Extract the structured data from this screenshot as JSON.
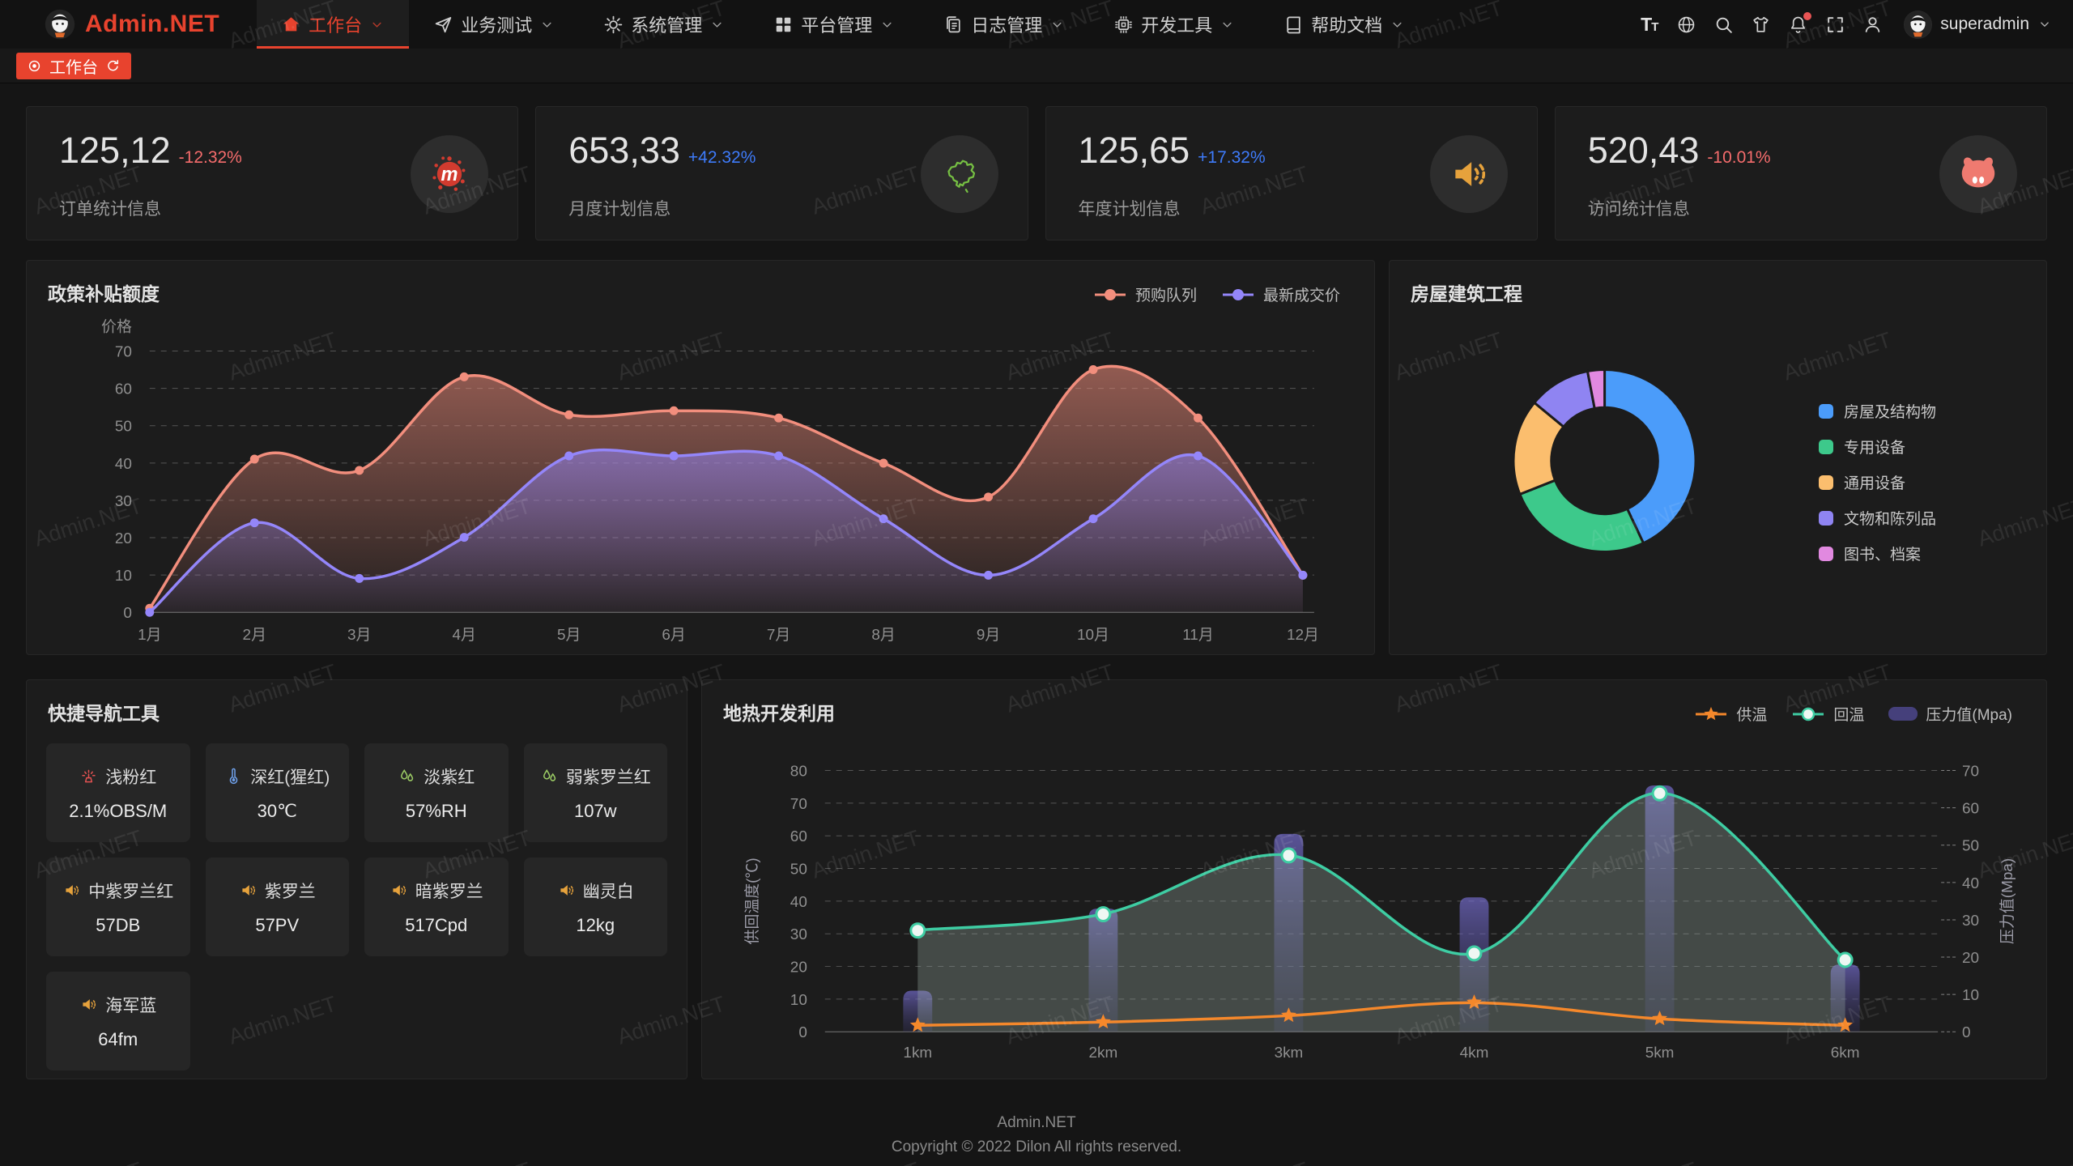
{
  "navbar": {
    "logo_text": "Admin.NET",
    "menus": [
      {
        "label": "工作台",
        "icon": "home-icon",
        "active": true
      },
      {
        "label": "业务测试",
        "icon": "send-icon",
        "active": false
      },
      {
        "label": "系统管理",
        "icon": "gear-icon",
        "active": false
      },
      {
        "label": "平台管理",
        "icon": "grid-icon",
        "active": false
      },
      {
        "label": "日志管理",
        "icon": "log-icon",
        "active": false
      },
      {
        "label": "开发工具",
        "icon": "chip-icon",
        "active": false
      },
      {
        "label": "帮助文档",
        "icon": "book-icon",
        "active": false
      }
    ],
    "right_icons": [
      "font-size-icon",
      "language-icon",
      "search-icon",
      "theme-icon",
      "bell-icon",
      "fullscreen-icon",
      "user-icon"
    ],
    "bell_has_badge": true,
    "user": "superadmin"
  },
  "tabbar": {
    "active_tab": "工作台"
  },
  "stat_cards": [
    {
      "value": "125,12",
      "delta": "-12.32%",
      "trend": "down",
      "label": "订单统计信息",
      "icon": "splat-icon"
    },
    {
      "value": "653,33",
      "delta": "+42.32%",
      "trend": "up",
      "label": "月度计划信息",
      "icon": "china-map-icon"
    },
    {
      "value": "125,65",
      "delta": "+17.32%",
      "trend": "up",
      "label": "年度计划信息",
      "icon": "speaker-icon"
    },
    {
      "value": "520,43",
      "delta": "-10.01%",
      "trend": "down",
      "label": "访问统计信息",
      "icon": "pig-icon"
    }
  ],
  "chart_data": [
    {
      "type": "area",
      "title": "政策补贴额度",
      "ylabel": "价格",
      "ylim": [
        0,
        70
      ],
      "grid": "dashed",
      "legend_position": "top-right",
      "categories": [
        "1月",
        "2月",
        "3月",
        "4月",
        "5月",
        "6月",
        "7月",
        "8月",
        "9月",
        "10月",
        "11月",
        "12月"
      ],
      "series": [
        {
          "name": "预购队列",
          "color": "#F28E7D",
          "values": [
            1,
            41,
            38,
            63,
            53,
            54,
            52,
            40,
            31,
            65,
            52,
            10
          ]
        },
        {
          "name": "最新成交价",
          "color": "#9486FA",
          "values": [
            0,
            24,
            9,
            20,
            42,
            42,
            42,
            25,
            10,
            25,
            42,
            10
          ]
        }
      ]
    },
    {
      "type": "pie",
      "title": "房屋建筑工程",
      "legend_position": "right",
      "slices": [
        {
          "label": "房屋及结构物",
          "value": 43,
          "color": "#4B9CFA"
        },
        {
          "label": "专用设备",
          "value": 26,
          "color": "#3DC98B"
        },
        {
          "label": "通用设备",
          "value": 17,
          "color": "#FBBE6E"
        },
        {
          "label": "文物和陈列品",
          "value": 11,
          "color": "#8F84F2"
        },
        {
          "label": "图书、档案",
          "value": 3,
          "color": "#E189E0"
        }
      ]
    },
    {
      "type": "line-bar",
      "title": "地热开发利用",
      "legend_position": "top-right",
      "categories": [
        "1km",
        "2km",
        "3km",
        "4km",
        "5km",
        "6km"
      ],
      "left_axis": {
        "label": "供回温度(℃)",
        "lim": [
          0,
          80
        ]
      },
      "right_axis": {
        "label": "压力值(Mpa)",
        "lim": [
          0,
          70
        ]
      },
      "series": [
        {
          "name": "供温",
          "kind": "line",
          "marker": "star",
          "axis": "left",
          "color": "#F5882B",
          "values": [
            2,
            3,
            5,
            9,
            4,
            2
          ]
        },
        {
          "name": "回温",
          "kind": "line",
          "marker": "circle",
          "axis": "left",
          "color": "#3ECDA3",
          "area": true,
          "values": [
            31,
            36,
            54,
            24,
            73,
            22
          ]
        },
        {
          "name": "压力值(Mpa)",
          "kind": "bar",
          "axis": "right",
          "color": "#45407B",
          "values": [
            11,
            33,
            53,
            36,
            66,
            18
          ]
        }
      ]
    }
  ],
  "quicknav": {
    "title": "快捷导航工具",
    "items": [
      {
        "title": "浅粉红",
        "value": "2.1%OBS/M",
        "icon": "fountain-icon",
        "color": "#e05151"
      },
      {
        "title": "深红(猩红)",
        "value": "30℃",
        "icon": "thermometer-icon",
        "color": "#6e9fe8"
      },
      {
        "title": "淡紫红",
        "value": "57%RH",
        "icon": "drops-icon",
        "color": "#9ccc65"
      },
      {
        "title": "弱紫罗兰红",
        "value": "107w",
        "icon": "drops-icon",
        "color": "#9ccc65"
      },
      {
        "title": "中紫罗兰红",
        "value": "57DB",
        "icon": "speaker-icon",
        "color": "#e6a23c"
      },
      {
        "title": "紫罗兰",
        "value": "57PV",
        "icon": "speaker-icon",
        "color": "#e6a23c"
      },
      {
        "title": "暗紫罗兰",
        "value": "517Cpd",
        "icon": "speaker-icon",
        "color": "#e6a23c"
      },
      {
        "title": "幽灵白",
        "value": "12kg",
        "icon": "speaker-icon",
        "color": "#e6a23c"
      },
      {
        "title": "海军蓝",
        "value": "64fm",
        "icon": "speaker-icon",
        "color": "#e6a23c"
      }
    ]
  },
  "footer": {
    "line1": "Admin.NET",
    "line2": "Copyright © 2022 Dilon All rights reserved."
  },
  "watermark_text": "Admin.NET",
  "colors": {
    "accent_red": "#e8432e",
    "delta_down": "#f56c6c",
    "delta_up": "#3e7bfa",
    "panel_bg": "#1c1c1c",
    "bar_fill": "#45407B"
  }
}
